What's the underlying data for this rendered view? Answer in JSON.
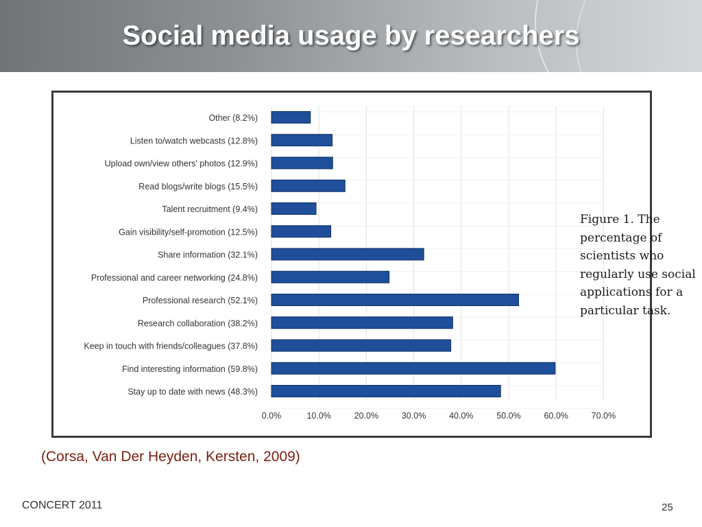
{
  "slide": {
    "title": "Social media usage by researchers",
    "citation": "(Corsa, Van Der Heyden, Kersten, 2009)",
    "footer_left": "CONCERT 2011",
    "page_number": "25"
  },
  "figure_caption": "Figure 1.  The percentage of scientists who regularly use social applications for a particular task.",
  "chart_data": {
    "type": "bar",
    "orientation": "horizontal",
    "categories": [
      "Other (8.2%)",
      "Listen to/watch webcasts (12.8%)",
      "Upload own/view others' photos (12.9%)",
      "Read blogs/write blogs (15.5%)",
      "Talent recruitment (9.4%)",
      "Gain visibility/self-promotion (12.5%)",
      "Share information (32.1%)",
      "Professional and career networking (24.8%)",
      "Professional research (52.1%)",
      "Research collaboration (38.2%)",
      "Keep in touch with friends/colleagues (37.8%)",
      "Find interesting information (59.8%)",
      "Stay up to date with news (48.3%)"
    ],
    "values": [
      8.2,
      12.8,
      12.9,
      15.5,
      9.4,
      12.5,
      32.1,
      24.8,
      52.1,
      38.2,
      37.8,
      59.8,
      48.3
    ],
    "xlim": [
      0,
      70
    ],
    "xticks": [
      "0.0%",
      "10.0%",
      "20.0%",
      "30.0%",
      "40.0%",
      "50.0%",
      "60.0%",
      "70.0%"
    ],
    "bar_color": "#1f4f9a",
    "grid": true
  }
}
